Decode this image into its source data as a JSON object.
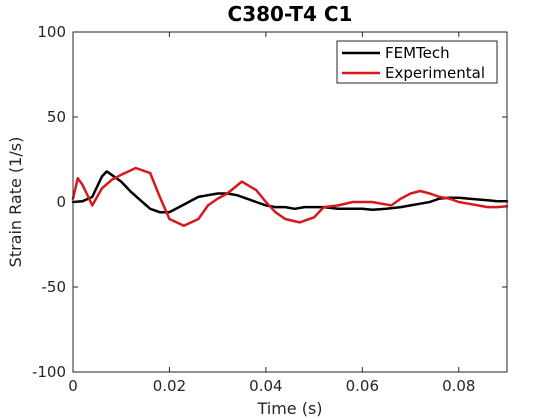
{
  "chart_data": {
    "type": "line",
    "title": "C380-T4 C1",
    "xlabel": "Time (s)",
    "ylabel": "Strain Rate (1/s)",
    "xlim": [
      0,
      0.09
    ],
    "ylim": [
      -100,
      100
    ],
    "xticks": [
      0,
      0.02,
      0.04,
      0.06,
      0.08
    ],
    "xtick_labels": [
      "0",
      "0.02",
      "0.04",
      "0.06",
      "0.08"
    ],
    "yticks": [
      -100,
      -50,
      0,
      50,
      100
    ],
    "ytick_labels": [
      "-100",
      "-50",
      "0",
      "50",
      "100"
    ],
    "grid": false,
    "box": true,
    "legend_position": "top-right",
    "series": [
      {
        "name": "FEMTech",
        "color": "#000000",
        "x": [
          0,
          0.002,
          0.004,
          0.006,
          0.007,
          0.008,
          0.01,
          0.012,
          0.014,
          0.016,
          0.018,
          0.02,
          0.022,
          0.024,
          0.026,
          0.028,
          0.03,
          0.032,
          0.034,
          0.036,
          0.038,
          0.04,
          0.042,
          0.044,
          0.046,
          0.048,
          0.05,
          0.052,
          0.055,
          0.058,
          0.06,
          0.062,
          0.065,
          0.068,
          0.07,
          0.072,
          0.074,
          0.076,
          0.078,
          0.08,
          0.082,
          0.084,
          0.086,
          0.088,
          0.09
        ],
        "y": [
          0,
          0.5,
          3,
          15,
          18,
          16,
          12,
          6,
          1,
          -4,
          -6,
          -6,
          -3,
          0,
          3,
          4,
          5,
          5,
          4,
          2,
          0,
          -2,
          -3,
          -3,
          -4,
          -3,
          -3,
          -3,
          -4,
          -4,
          -4,
          -4.5,
          -4,
          -3,
          -2,
          -1,
          0,
          2,
          2.5,
          2.5,
          2,
          1.5,
          1,
          0.5,
          0.5
        ]
      },
      {
        "name": "Experimental",
        "color": "#d7191c",
        "x": [
          0,
          0.001,
          0.002,
          0.004,
          0.006,
          0.008,
          0.01,
          0.013,
          0.016,
          0.018,
          0.02,
          0.023,
          0.026,
          0.028,
          0.03,
          0.032,
          0.035,
          0.038,
          0.04,
          0.042,
          0.044,
          0.047,
          0.05,
          0.052,
          0.055,
          0.058,
          0.06,
          0.062,
          0.064,
          0.066,
          0.068,
          0.07,
          0.072,
          0.074,
          0.076,
          0.078,
          0.08,
          0.082,
          0.084,
          0.086,
          0.088,
          0.09
        ],
        "y": [
          2,
          14,
          10,
          -2,
          8,
          13,
          16,
          20,
          17,
          3,
          -10,
          -14,
          -10,
          -2,
          2,
          5,
          12,
          7,
          0,
          -6,
          -10,
          -12,
          -9,
          -3,
          -2,
          0,
          0,
          0,
          -1,
          -2,
          2,
          5,
          6.5,
          5,
          3,
          2,
          0,
          -1,
          -2,
          -3,
          -3,
          -2.5
        ]
      }
    ]
  }
}
